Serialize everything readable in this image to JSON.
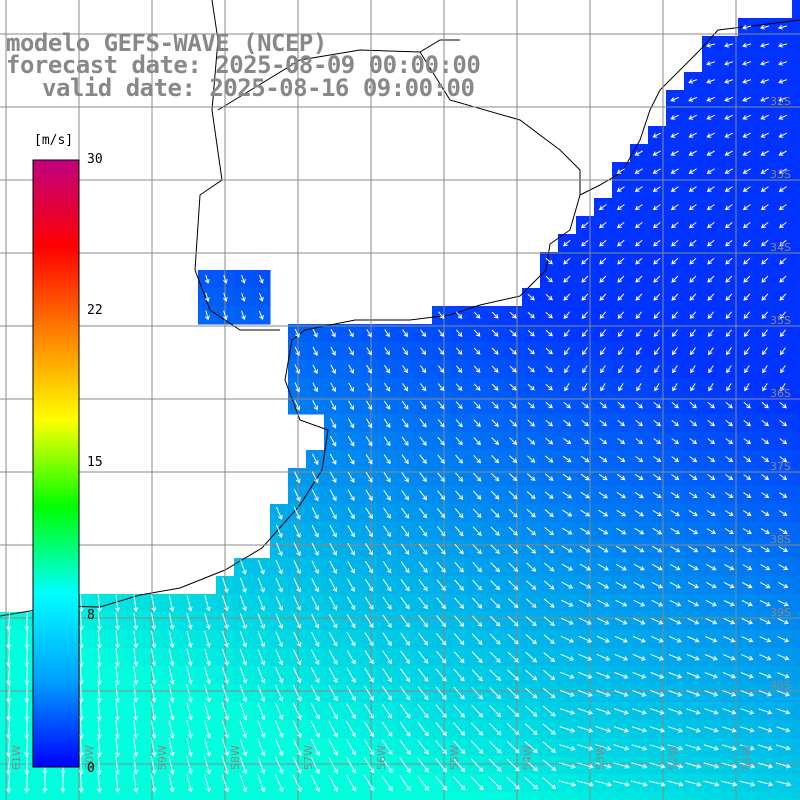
{
  "title": {
    "model": "modelo GEFS-WAVE (NCEP)",
    "forecast": "forecast date: 2025-08-09 00:00:00",
    "valid": "valid date: 2025-08-16 09:00:00"
  },
  "colorbar": {
    "unit": "[m/s]",
    "ticks": [
      "30",
      "22",
      "15",
      "8",
      "0"
    ],
    "stops": [
      "#0000ff",
      "#00a0ff",
      "#00ffff",
      "#00ff00",
      "#ffff00",
      "#ff8000",
      "#ff0000",
      "#c00080"
    ]
  },
  "map": {
    "lat_labels": [
      "32S",
      "33S",
      "34S",
      "35S",
      "36S",
      "37S",
      "38S",
      "39S",
      "40S"
    ],
    "lon_labels": [
      "61W",
      "60W",
      "59W",
      "58W",
      "57W",
      "56W",
      "55W",
      "54W",
      "53W",
      "52W",
      "51W"
    ],
    "land_color": "#ffffff",
    "grid_color": "#888888",
    "arrow_color": "#ffffff",
    "high_wind_color": "#00ffdd",
    "low_wind_color": "#0033ff"
  }
}
